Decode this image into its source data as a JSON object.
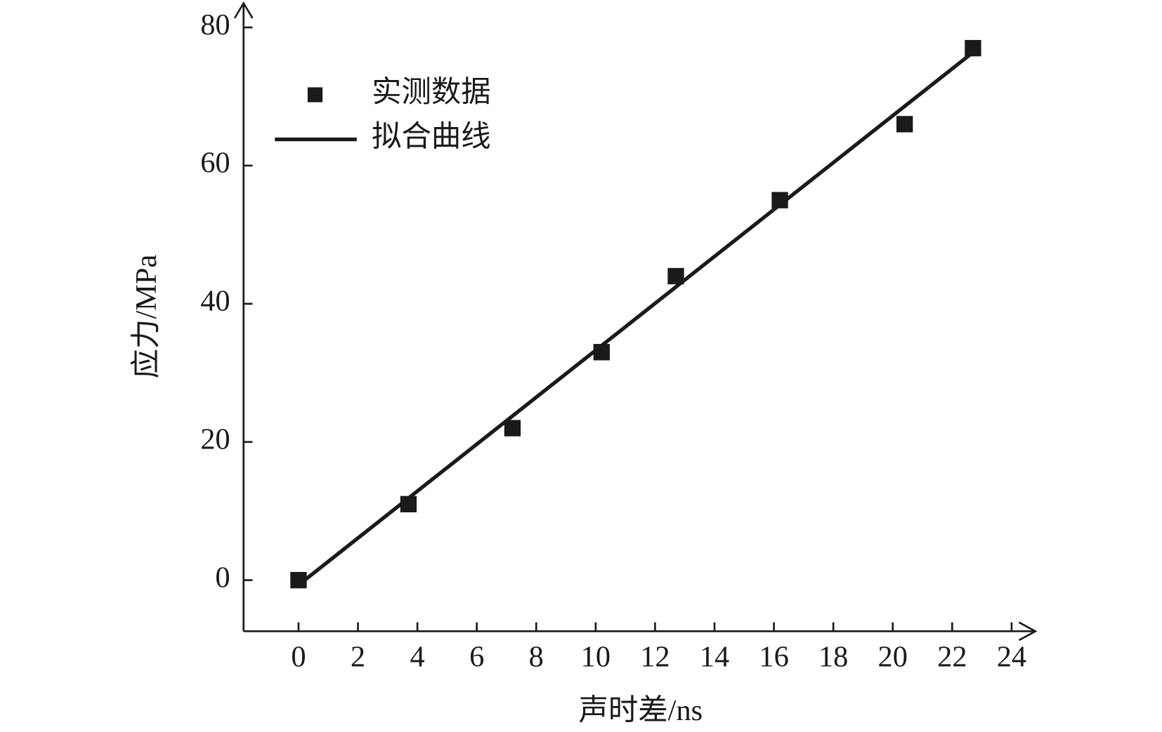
{
  "chart_data": {
    "type": "scatter",
    "x_label": "声时差/ns",
    "y_label": "应力/MPa",
    "series": [
      {
        "name": "实测数据",
        "type": "scatter",
        "color": "#1a1a1a",
        "x": [
          0,
          3.7,
          7.2,
          10.2,
          12.7,
          16.2,
          20.4,
          22.7
        ],
        "values": [
          0,
          11,
          22,
          33,
          44,
          55,
          66,
          77
        ]
      },
      {
        "name": "拟合曲线",
        "type": "line",
        "color": "#1a1a1a",
        "x": [
          0,
          22.7
        ],
        "values": [
          -0.7,
          76.4
        ]
      }
    ],
    "xlim": [
      -1.85,
      24.8
    ],
    "ylim": [
      -7.4,
      83.5
    ],
    "xticks": [
      0,
      2,
      4,
      6,
      8,
      10,
      12,
      14,
      16,
      18,
      20,
      22,
      24
    ],
    "yticks": [
      0,
      20,
      40,
      60,
      80
    ],
    "legend": "upper left"
  }
}
